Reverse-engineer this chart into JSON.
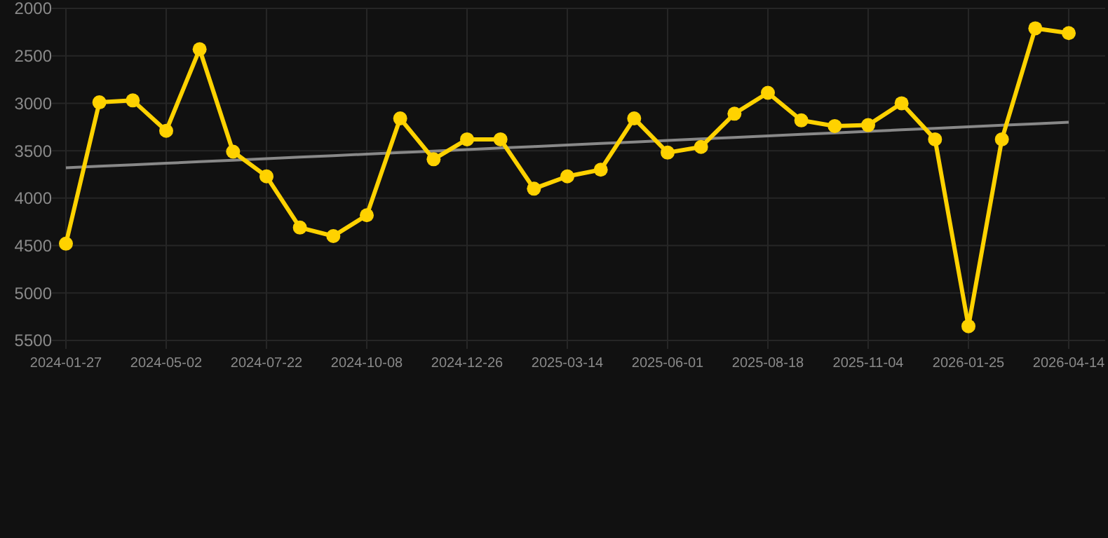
{
  "chart_data": {
    "type": "line",
    "categories": [
      "2024-01-27",
      null,
      null,
      "2024-05-02",
      null,
      null,
      "2024-07-22",
      null,
      null,
      "2024-10-08",
      null,
      null,
      "2024-12-26",
      null,
      null,
      "2025-03-14",
      null,
      null,
      "2025-06-01",
      null,
      null,
      "2025-08-18",
      null,
      null,
      "2025-11-04",
      null,
      null,
      "2026-01-25",
      null,
      null,
      "2026-04-14"
    ],
    "series": [
      {
        "color": "#ffd200",
        "marker": "circle",
        "values": [
          4480,
          2990,
          2970,
          3290,
          2430,
          3510,
          3770,
          4310,
          4400,
          4180,
          3160,
          3590,
          3380,
          3380,
          3900,
          3770,
          3700,
          3160,
          3520,
          3460,
          3110,
          2890,
          3180,
          3240,
          3230,
          3000,
          3380,
          5350,
          3380,
          2210,
          2260
        ]
      },
      {
        "type": "line",
        "color": "#888888",
        "marker": "none",
        "values": [
          3680,
          3664,
          3648,
          3632,
          3616,
          3600,
          3584,
          3568,
          3552,
          3536,
          3520,
          3504,
          3488,
          3472,
          3456,
          3440,
          3424,
          3408,
          3392,
          3376,
          3360,
          3344,
          3328,
          3312,
          3296,
          3280,
          3264,
          3248,
          3232,
          3216,
          3200
        ]
      }
    ],
    "ylim": [
      5500,
      2000
    ],
    "yticks": [
      2000,
      2500,
      3000,
      3500,
      4000,
      4500,
      5000,
      5500
    ],
    "grid": true
  }
}
